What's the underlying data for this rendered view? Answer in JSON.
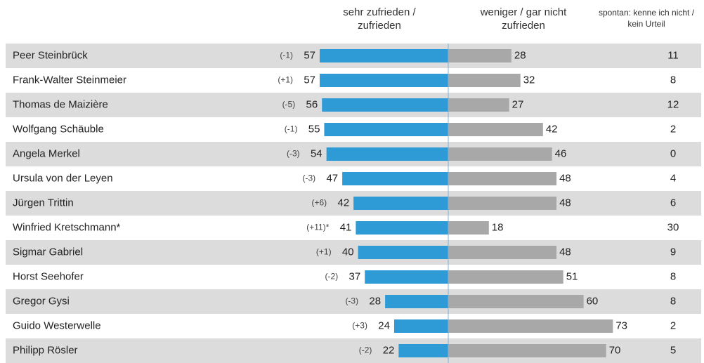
{
  "chart_data": {
    "type": "diverging-bar",
    "categories": [
      "Peer Steinbrück",
      "Frank-Walter Steinmeier",
      "Thomas de Maizière",
      "Wolfgang Schäuble",
      "Angela Merkel",
      "Ursula von der Leyen",
      "Jürgen Trittin",
      "Winfried Kretschmann*",
      "Sigmar Gabriel",
      "Horst Seehofer",
      "Gregor Gysi",
      "Guido Westerwelle",
      "Philipp Rösler"
    ],
    "change_labels": [
      "(-1)",
      "(+1)",
      "(-5)",
      "(-1)",
      "(-3)",
      "(-3)",
      "(+6)",
      "(+11)*",
      "(+1)",
      "(-2)",
      "(-3)",
      "(+3)",
      "(-2)"
    ],
    "series": [
      {
        "name": "sehr zufrieden / zufrieden",
        "color": "#2e9bd6",
        "values": [
          57,
          57,
          56,
          55,
          54,
          47,
          42,
          41,
          40,
          37,
          28,
          24,
          22
        ]
      },
      {
        "name": "weniger / gar nicht zufrieden",
        "color": "#a8a8a8",
        "values": [
          28,
          32,
          27,
          42,
          46,
          48,
          48,
          18,
          48,
          51,
          60,
          73,
          70
        ]
      },
      {
        "name": "spontan: kenne ich nicht / kein Urteil",
        "values": [
          11,
          8,
          12,
          2,
          0,
          4,
          6,
          30,
          9,
          8,
          8,
          2,
          5
        ]
      }
    ]
  }
}
